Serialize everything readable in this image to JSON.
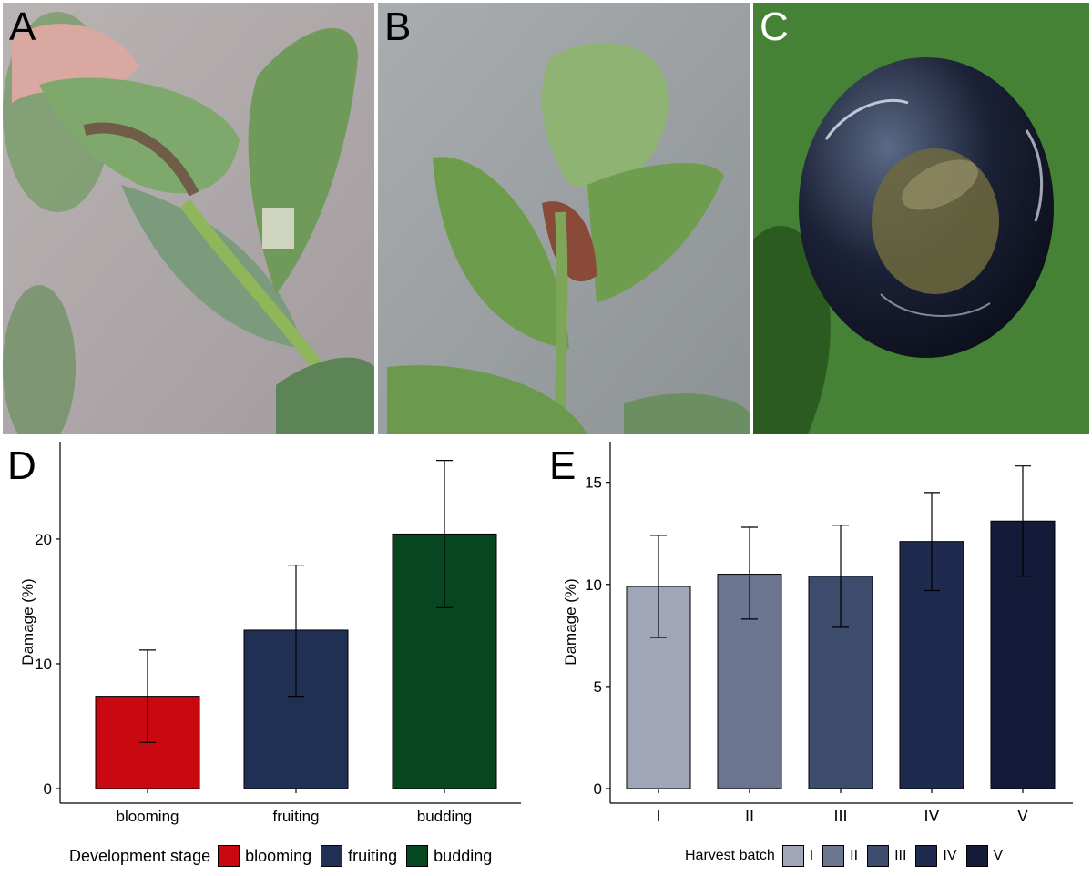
{
  "panels": {
    "photo_labels": [
      "A",
      "B",
      "C"
    ],
    "chart_labels": [
      "D",
      "E"
    ]
  },
  "chart_data": [
    {
      "type": "bar",
      "panel": "D",
      "categories": [
        "blooming",
        "fruiting",
        "budding"
      ],
      "values": [
        7.4,
        12.7,
        20.4
      ],
      "error_low": [
        3.7,
        7.4,
        14.5
      ],
      "error_high": [
        11.1,
        17.9,
        26.3
      ],
      "colors": [
        "#c8090f",
        "#202f54",
        "#06471f"
      ],
      "ylabel": "Damage (%)",
      "xlabel": "",
      "ylim": [
        0,
        27
      ],
      "yticks": [
        0,
        10,
        20
      ],
      "grid": false,
      "legend": {
        "title": "Development stage",
        "placement": "bottom",
        "entries": [
          "blooming",
          "fruiting",
          "budding"
        ]
      }
    },
    {
      "type": "bar",
      "panel": "E",
      "categories": [
        "I",
        "II",
        "III",
        "IV",
        "V"
      ],
      "values": [
        9.9,
        10.5,
        10.4,
        12.1,
        13.1
      ],
      "error_low": [
        7.4,
        8.3,
        7.9,
        9.7,
        10.4
      ],
      "error_high": [
        12.4,
        12.8,
        12.9,
        14.5,
        15.8
      ],
      "colors": [
        "#a0a6b8",
        "#6b7590",
        "#3d4b6c",
        "#1e2b4f",
        "#131b38"
      ],
      "ylabel": "Damage (%)",
      "xlabel": "",
      "ylim": [
        0,
        16.5
      ],
      "yticks": [
        0,
        5,
        10,
        15
      ],
      "grid": false,
      "legend": {
        "title": "Harvest batch",
        "placement": "bottom",
        "entries": [
          "I",
          "II",
          "III",
          "IV",
          "V"
        ]
      }
    }
  ]
}
